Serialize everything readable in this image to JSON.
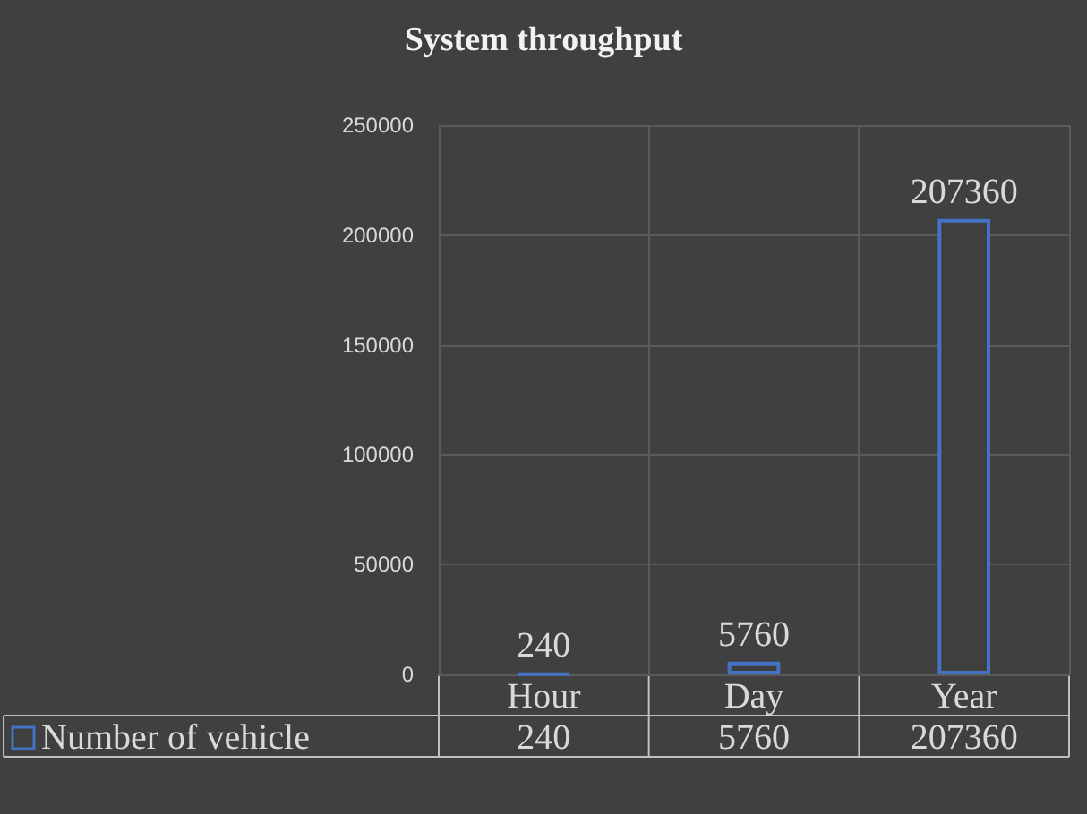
{
  "chart_data": {
    "type": "bar",
    "title": "System throughput",
    "categories": [
      "Hour",
      "Day",
      "Year"
    ],
    "series": [
      {
        "name": "Number of vehicle",
        "color": "#4472c4",
        "values": [
          240,
          5760,
          207360
        ],
        "value_labels": [
          "240",
          "5760",
          "207360"
        ]
      }
    ],
    "ylim": [
      0,
      250000
    ],
    "yticks": [
      0,
      50000,
      100000,
      150000,
      200000,
      250000
    ],
    "grid": true,
    "legend": "bottom left",
    "annotations": [
      "240",
      "5760",
      "207360"
    ]
  }
}
